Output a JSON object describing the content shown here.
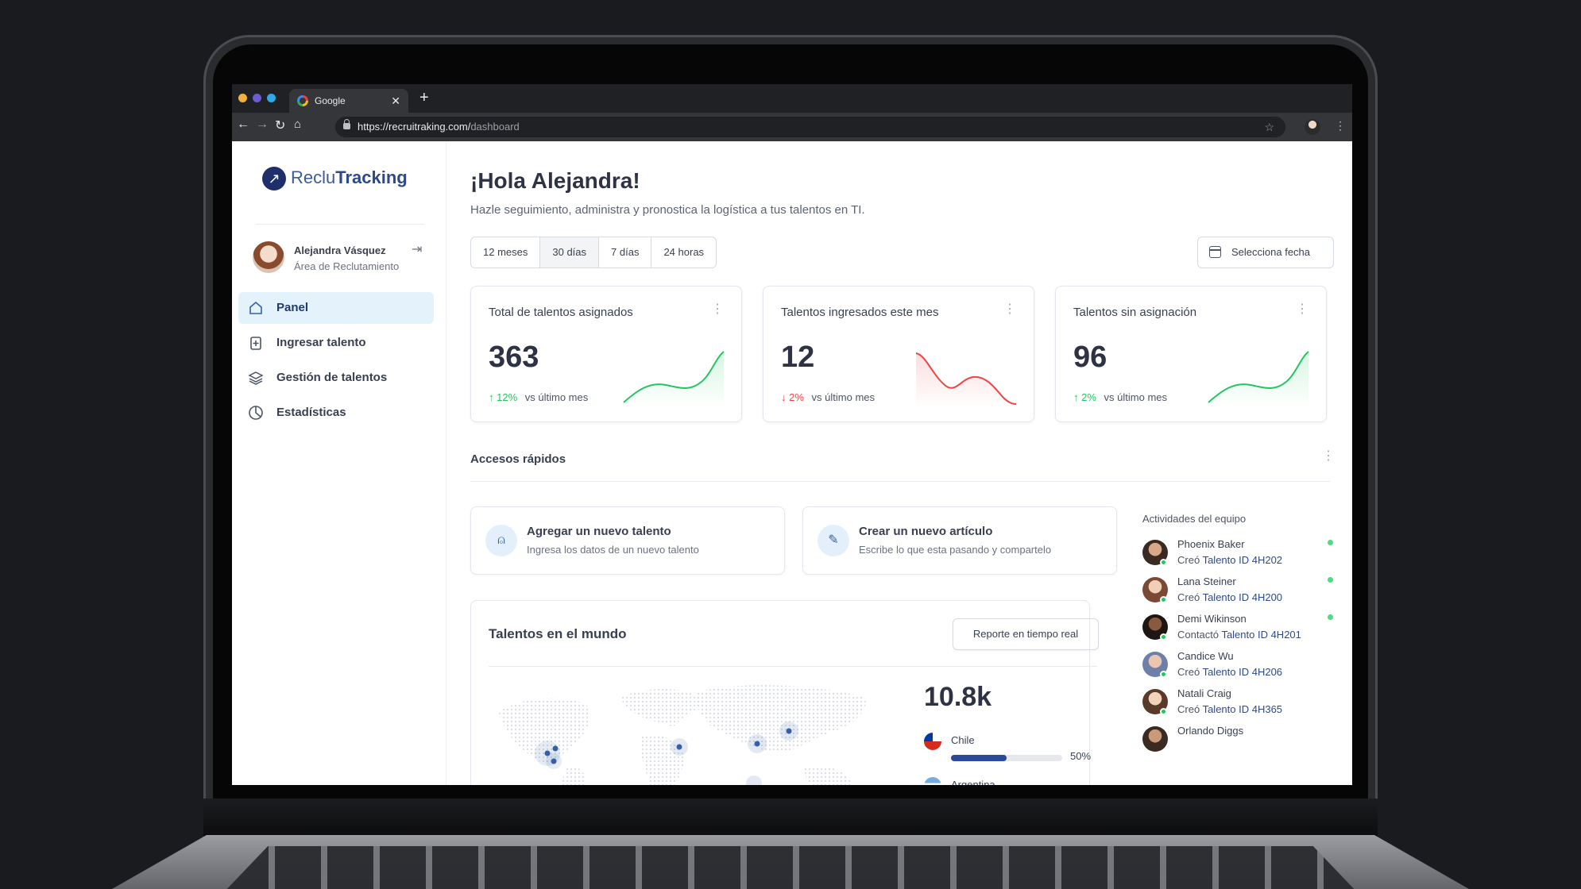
{
  "browser": {
    "tab_title": "Google",
    "url_host": "https://recruitraking.com/",
    "url_path": "dashboard"
  },
  "brand": {
    "part1": "Reclu",
    "part2": "Tracking"
  },
  "user": {
    "name": "Alejandra Vásquez",
    "role": "Área de Reclutamiento"
  },
  "sidebar": {
    "items": [
      {
        "label": "Panel",
        "icon": "home-icon",
        "active": true
      },
      {
        "label": "Ingresar talento",
        "icon": "add-file-icon"
      },
      {
        "label": "Gestión de talentos",
        "icon": "layers-icon"
      },
      {
        "label": "Estadísticas",
        "icon": "pie-chart-icon"
      }
    ]
  },
  "header": {
    "title": "¡Hola Alejandra!",
    "subtitle": "Hazle seguimiento, administra y pronostica la logística a tus talentos en TI.",
    "ranges": [
      "12 meses",
      "30 días",
      "7 días",
      "24 horas"
    ],
    "selected_range": "30 días",
    "date_button": "Selecciona fecha"
  },
  "stats": [
    {
      "title": "Total de talentos asignados",
      "value": "363",
      "delta": "12%",
      "direction": "up",
      "delta_label": "vs último mes",
      "color": "#22c55e"
    },
    {
      "title": "Talentos ingresados este mes",
      "value": "12",
      "delta": "2%",
      "direction": "down",
      "delta_label": "vs último mes",
      "color": "#ef4444"
    },
    {
      "title": "Talentos sin asignación",
      "value": "96",
      "delta": "2%",
      "direction": "up",
      "delta_label": "vs último mes",
      "color": "#22c55e"
    }
  ],
  "quick_access": {
    "title": "Accesos rápidos",
    "items": [
      {
        "title": "Agregar un nuevo talento",
        "desc": "Ingresa los datos de un nuevo talento",
        "icon": "add-user-icon"
      },
      {
        "title": "Crear un nuevo artículo",
        "desc": "Escribe lo que esta pasando y compartelo",
        "icon": "pen-icon"
      }
    ]
  },
  "world": {
    "title": "Talentos en el mundo",
    "report_button": "Reporte en tiempo real",
    "total": "10.8k",
    "countries": [
      {
        "name": "Chile",
        "percent": "50%",
        "fraction": 0.5
      },
      {
        "name": "Argentina"
      }
    ]
  },
  "team": {
    "title": "Actividades del equipo",
    "items": [
      {
        "name": "Phoenix Baker",
        "action": "Creó",
        "target": "Talento ID 4H202"
      },
      {
        "name": "Lana Steiner",
        "action": "Creó",
        "target": "Talento ID 4H200"
      },
      {
        "name": "Demi Wikinson",
        "action": "Contactó",
        "target": "Talento ID 4H201"
      },
      {
        "name": "Candice Wu",
        "action": "Creó",
        "target": "Talento ID 4H206"
      },
      {
        "name": "Natali Craig",
        "action": "Creó",
        "target": "Talento ID 4H365"
      },
      {
        "name": "Orlando Diggs"
      }
    ]
  }
}
